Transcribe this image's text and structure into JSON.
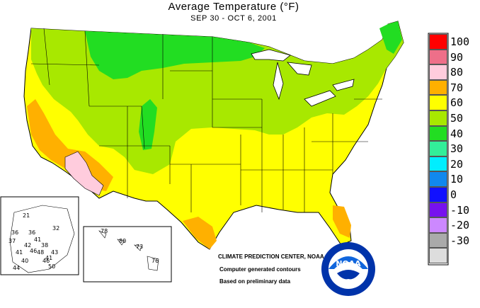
{
  "header": {
    "title": "Average Temperature (°F)",
    "subtitle": "SEP 30 - OCT  6, 2001"
  },
  "credits": {
    "center": "CLIMATE PREDICTION CENTER, NOAA",
    "line1": "Computer generated contours",
    "line2": "Based on preliminary data"
  },
  "logo": {
    "text": "NOAA"
  },
  "legend": [
    {
      "label": "100",
      "color": "#ff0000"
    },
    {
      "label": "90",
      "color": "#ee6f89"
    },
    {
      "label": "80",
      "color": "#ffccdd"
    },
    {
      "label": "70",
      "color": "#ffb000"
    },
    {
      "label": "60",
      "color": "#ffff00"
    },
    {
      "label": "50",
      "color": "#a8e800"
    },
    {
      "label": "40",
      "color": "#22dd22"
    },
    {
      "label": "30",
      "color": "#33ee99"
    },
    {
      "label": "20",
      "color": "#00eeff"
    },
    {
      "label": "10",
      "color": "#1188ee"
    },
    {
      "label": "0",
      "color": "#1111ff"
    },
    {
      "label": "-10",
      "color": "#7711ee"
    },
    {
      "label": "-20",
      "color": "#cc88ff"
    },
    {
      "label": "-30",
      "color": "#aaaaaa"
    },
    {
      "label": "",
      "color": "#dddddd"
    }
  ],
  "alaska_values": [
    "21",
    "36",
    "36",
    "41",
    "32",
    "37",
    "42",
    "41",
    "46",
    "48",
    "38",
    "43",
    "41",
    "40",
    "44",
    "46",
    "50"
  ],
  "hawaii_values": [
    "78",
    "80",
    "73",
    "76"
  ]
}
